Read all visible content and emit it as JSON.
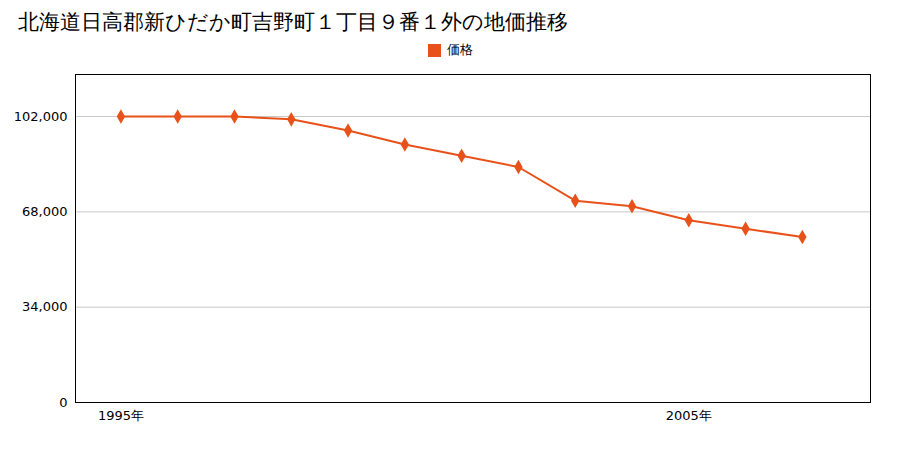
{
  "chart_data": {
    "type": "line",
    "title": "北海道日高郡新ひだか町吉野町１丁目９番１外の地価推移",
    "x": [
      1995,
      1996,
      1997,
      1998,
      1999,
      2000,
      2001,
      2002,
      2003,
      2004,
      2005,
      2006,
      2007
    ],
    "series": [
      {
        "name": "価格",
        "color": "#E8521A",
        "marker": "diamond",
        "values": [
          102000,
          102000,
          102000,
          101000,
          97000,
          92000,
          88000,
          84000,
          72000,
          70000,
          65000,
          62000,
          59000
        ]
      }
    ],
    "xlim": [
      1994.2,
      2008.2
    ],
    "xticks": [
      {
        "value": 1995,
        "label": "1995年"
      },
      {
        "value": 2005,
        "label": "2005年"
      }
    ],
    "ylim": [
      0,
      117000
    ],
    "yticks": [
      0,
      {
        "value": 34000,
        "label": "34,000"
      },
      {
        "value": 68000,
        "label": "68,000"
      },
      {
        "value": 102000,
        "label": "102,000"
      }
    ],
    "grid": "y",
    "legend": "top"
  }
}
